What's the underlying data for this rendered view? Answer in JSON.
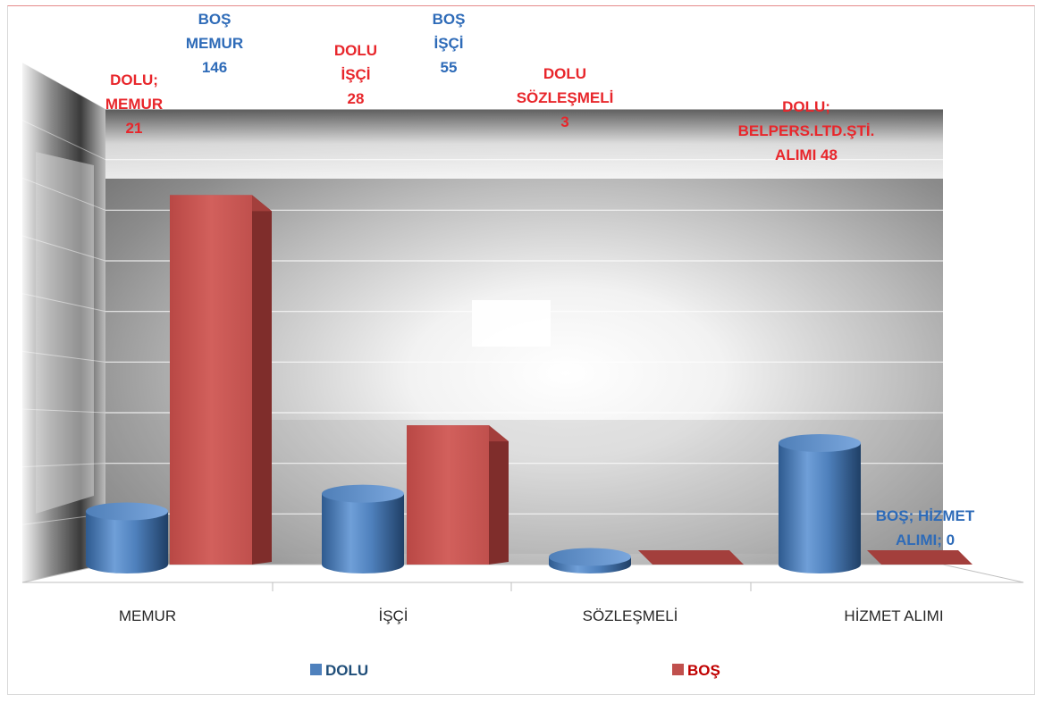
{
  "chart_data": {
    "type": "bar",
    "title": "",
    "xlabel": "",
    "ylabel": "",
    "categories": [
      "MEMUR",
      "İŞÇİ",
      "SÖZLEŞMELİ",
      "HİZMET ALIMI"
    ],
    "ylim": [
      0,
      180
    ],
    "grid": true,
    "legend": "bottom",
    "series": [
      {
        "name": "DOLU",
        "color": "#4f81bd",
        "values": [
          21,
          28,
          3,
          48
        ],
        "labels": [
          [
            "DOLU;",
            "MEMUR",
            "21"
          ],
          [
            "DOLU",
            "İŞÇİ",
            "28"
          ],
          [
            "DOLU",
            "SÖZLEŞMELİ",
            "3"
          ],
          [
            "DOLU;",
            "BELPERS.LTD.ŞTİ.",
            "ALIMI 48"
          ]
        ]
      },
      {
        "name": "BOŞ",
        "color": "#c0504d",
        "values": [
          146,
          55,
          0,
          0
        ],
        "labels": [
          [
            "BOŞ",
            "MEMUR",
            "146"
          ],
          [
            "BOŞ",
            "İŞÇİ",
            "55"
          ],
          [],
          [
            "BOŞ; HİZMET",
            "ALIMI; 0"
          ]
        ]
      }
    ]
  }
}
